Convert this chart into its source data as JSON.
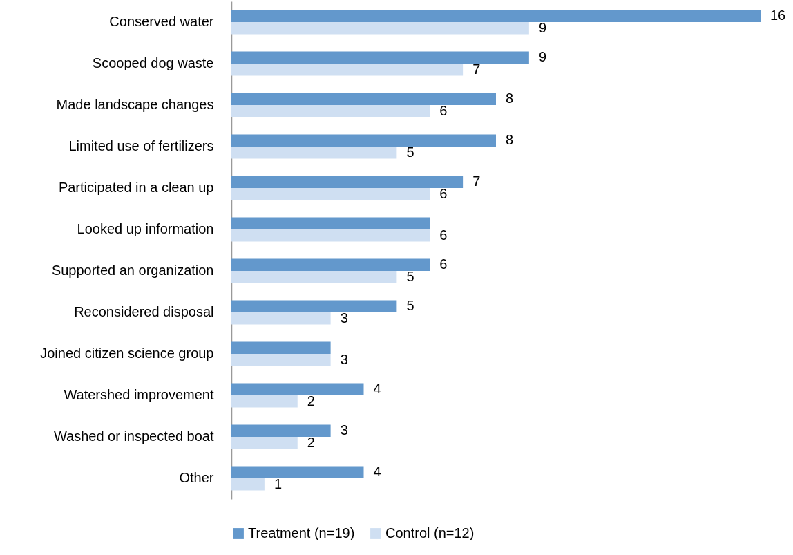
{
  "chart_data": {
    "type": "bar",
    "orientation": "horizontal",
    "categories": [
      "Conserved water",
      "Scooped dog waste",
      "Made landscape changes",
      "Limited use of fertilizers",
      "Participated in a clean up",
      "Looked up information",
      "Supported an organization",
      "Reconsidered disposal",
      "Joined citizen science group",
      "Watershed improvement",
      "Washed or inspected boat",
      "Other"
    ],
    "series": [
      {
        "name": "Treatment (n=19)",
        "color": "#6398cc",
        "values": [
          16,
          9,
          8,
          8,
          7,
          6,
          6,
          5,
          3,
          4,
          3,
          4
        ],
        "value_labels": [
          "16",
          "9",
          "8",
          "8",
          "7",
          null,
          "6",
          "5",
          null,
          "4",
          "3",
          "4"
        ]
      },
      {
        "name": "Control (n=12)",
        "color": "#cfdff2",
        "values": [
          9,
          7,
          6,
          5,
          6,
          6,
          5,
          3,
          3,
          2,
          2,
          1
        ],
        "value_labels": [
          "9",
          "7",
          "6",
          "5",
          "6",
          "6",
          "5",
          "3",
          "3",
          "2",
          "2",
          "1"
        ]
      }
    ],
    "xlim": [
      0,
      16
    ],
    "legend": "bottom"
  }
}
